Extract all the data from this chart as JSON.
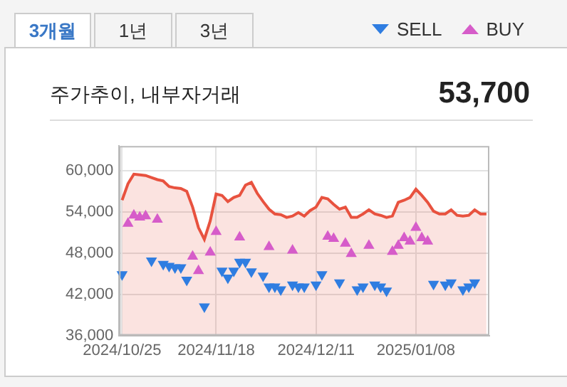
{
  "chart_data": {
    "type": "area",
    "title": "주가추이, 내부자거래",
    "annotations": [
      "3개월",
      "1년",
      "3년",
      "53,700"
    ],
    "categories": [
      "2024/10/25",
      null,
      null,
      null,
      null,
      null,
      null,
      null,
      null,
      null,
      null,
      null,
      null,
      null,
      null,
      null,
      "2024/11/18",
      null,
      null,
      null,
      null,
      null,
      null,
      null,
      null,
      null,
      null,
      null,
      null,
      null,
      null,
      null,
      null,
      "2024/12/11",
      null,
      null,
      null,
      null,
      null,
      null,
      null,
      null,
      null,
      null,
      null,
      null,
      null,
      null,
      null,
      null,
      "2025/01/08",
      null,
      null,
      null,
      null,
      null,
      null,
      null,
      null,
      null,
      null,
      null,
      null
    ],
    "series": [
      {
        "color": "#e8523f",
        "marker": "none",
        "values": [
          55700,
          58100,
          59500,
          59400,
          59300,
          59000,
          58700,
          58500,
          57700,
          57500,
          57400,
          57000,
          54700,
          51700,
          50000,
          52700,
          56600,
          56400,
          55500,
          56100,
          56400,
          57900,
          58300,
          56700,
          55500,
          54400,
          53700,
          53600,
          53200,
          53400,
          53900,
          53400,
          54200,
          54700,
          56100,
          55900,
          55100,
          54400,
          54700,
          53200,
          53200,
          53700,
          54300,
          53700,
          53500,
          53200,
          53400,
          55400,
          55700,
          56100,
          57300,
          56400,
          55400,
          54100,
          53700,
          53700,
          54300,
          53500,
          53400,
          53500,
          54300,
          53700,
          53700
        ]
      },
      {
        "type": "scatter",
        "name": "SELL",
        "color": "#2f7de1",
        "marker": "triangle",
        "values": [
          44900,
          null,
          null,
          null,
          null,
          46900,
          null,
          46400,
          46100,
          45900,
          45900,
          44100,
          null,
          null,
          40200,
          null,
          null,
          45400,
          44400,
          45400,
          46700,
          46700,
          45300,
          null,
          44700,
          43100,
          43100,
          42700,
          null,
          43400,
          43100,
          43100,
          null,
          43400,
          44900,
          null,
          null,
          43700,
          null,
          null,
          42700,
          43100,
          null,
          43400,
          43100,
          42500,
          null,
          null,
          null,
          null,
          null,
          null,
          null,
          43500,
          null,
          43400,
          43700,
          null,
          42700,
          43100,
          43700,
          null,
          null
        ]
      },
      {
        "type": "scatter",
        "name": "BUY",
        "color": "#d65cc9",
        "marker": "triangle",
        "values": [
          null,
          52300,
          53500,
          53200,
          53400,
          null,
          52900,
          null,
          null,
          null,
          null,
          null,
          47500,
          45400,
          null,
          48100,
          51100,
          null,
          null,
          null,
          50300,
          null,
          null,
          null,
          null,
          48900,
          null,
          null,
          null,
          48400,
          null,
          null,
          null,
          null,
          null,
          50400,
          50100,
          null,
          49400,
          47900,
          null,
          null,
          49100,
          null,
          null,
          null,
          48200,
          49100,
          50200,
          49700,
          51700,
          50200,
          49700,
          null,
          null,
          null,
          null,
          null,
          null,
          null,
          null,
          null,
          null
        ]
      }
    ],
    "ylim": [
      36000,
      63600
    ],
    "yticks": [
      {
        "value": 36000,
        "label": "36,000"
      },
      {
        "value": 42000,
        "label": "42,000"
      },
      {
        "value": 48000,
        "label": "48,000"
      },
      {
        "value": 54000,
        "label": "54,000"
      },
      {
        "value": 60000,
        "label": "60,000"
      }
    ],
    "grid": true,
    "legend": "top right"
  }
}
